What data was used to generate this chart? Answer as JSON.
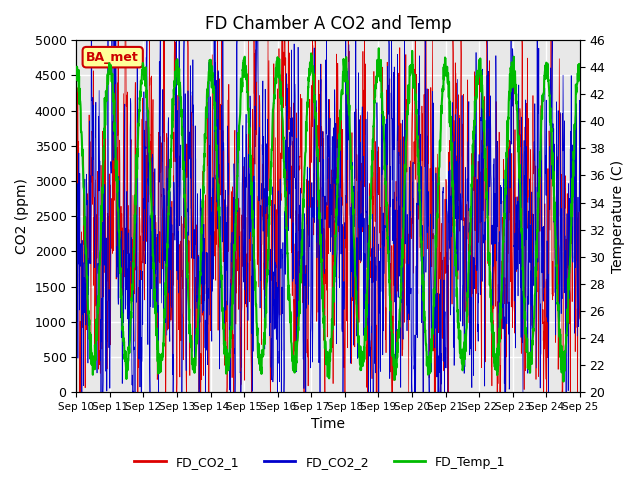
{
  "title": "FD Chamber A CO2 and Temp",
  "xlabel": "Time",
  "ylabel_left": "CO2 (ppm)",
  "ylabel_right": "Temperature (C)",
  "ylim_left": [
    0,
    5000
  ],
  "ylim_right": [
    20,
    46
  ],
  "yticks_left": [
    0,
    500,
    1000,
    1500,
    2000,
    2500,
    3000,
    3500,
    4000,
    4500,
    5000
  ],
  "yticks_right": [
    20,
    22,
    24,
    26,
    28,
    30,
    32,
    34,
    36,
    38,
    40,
    42,
    44,
    46
  ],
  "xtick_labels": [
    "Sep 10",
    "Sep 11",
    "Sep 12",
    "Sep 13",
    "Sep 14",
    "Sep 15",
    "Sep 16",
    "Sep 17",
    "Sep 18",
    "Sep 19",
    "Sep 20",
    "Sep 21",
    "Sep 22",
    "Sep 23",
    "Sep 24",
    "Sep 25"
  ],
  "color_co2_1": "#dd0000",
  "color_co2_2": "#0000cc",
  "color_temp": "#00bb00",
  "legend_label_1": "FD_CO2_1",
  "legend_label_2": "FD_CO2_2",
  "legend_label_3": "FD_Temp_1",
  "annotation_text": "BA_met",
  "annotation_color": "#cc0000",
  "annotation_bg": "#ffff99",
  "background_color": "#e8e8e8",
  "grid_color": "#ffffff",
  "title_fontsize": 12,
  "n_days": 15,
  "points_per_day": 144
}
